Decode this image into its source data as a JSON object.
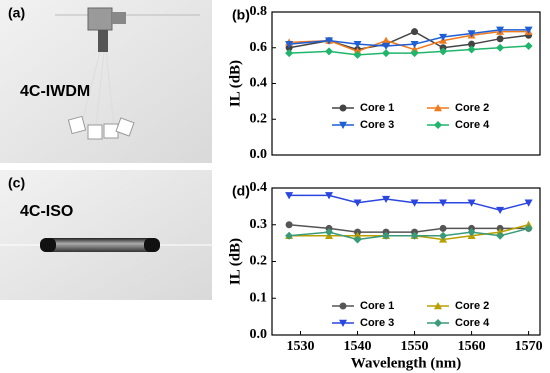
{
  "photos": [
    {
      "label": "(a)",
      "text": "4C-IWDM"
    },
    {
      "label": "(c)",
      "text": "4C-ISO"
    }
  ],
  "chart_data": [
    {
      "type": "line",
      "panel_label": "(b)",
      "y_label": "IL (dB)",
      "x": [
        1528,
        1535,
        1540,
        1545,
        1550,
        1555,
        1560,
        1565,
        1570
      ],
      "xlim": [
        1525,
        1572
      ],
      "ylim": [
        0,
        0.8
      ],
      "yticks": [
        {
          "value": 0,
          "label": "0.0"
        },
        0.2,
        0.4,
        0.6,
        0.8
      ],
      "series": [
        {
          "name": "Core 1",
          "color": "#444444",
          "marker": "circle",
          "values": [
            0.6,
            0.64,
            0.59,
            0.62,
            0.69,
            0.6,
            0.62,
            0.65,
            0.67
          ]
        },
        {
          "name": "Core 2",
          "color": "#f07a1e",
          "marker": "triangle-up",
          "values": [
            0.63,
            0.64,
            0.58,
            0.64,
            0.59,
            0.64,
            0.67,
            0.69,
            0.69
          ]
        },
        {
          "name": "Core 3",
          "color": "#1f5fd6",
          "marker": "triangle-down",
          "values": [
            0.62,
            0.64,
            0.62,
            0.61,
            0.62,
            0.66,
            0.68,
            0.7,
            0.7
          ]
        },
        {
          "name": "Core 4",
          "color": "#1fb56b",
          "marker": "diamond",
          "values": [
            0.57,
            0.58,
            0.56,
            0.57,
            0.57,
            0.58,
            0.59,
            0.6,
            0.61
          ]
        }
      ]
    },
    {
      "type": "line",
      "panel_label": "(d)",
      "y_label": "IL (dB)",
      "x_label": "Wavelength (nm)",
      "x": [
        1528,
        1535,
        1540,
        1545,
        1550,
        1555,
        1560,
        1565,
        1570
      ],
      "xlim": [
        1525,
        1572
      ],
      "xticks": [
        1530,
        1540,
        1550,
        1560,
        1570
      ],
      "ylim": [
        0,
        0.4
      ],
      "yticks": [
        {
          "value": 0,
          "label": "0.0"
        },
        0.1,
        0.2,
        0.3,
        0.4
      ],
      "series": [
        {
          "name": "Core 1",
          "color": "#555555",
          "marker": "circle",
          "values": [
            0.3,
            0.29,
            0.28,
            0.28,
            0.28,
            0.29,
            0.29,
            0.29,
            0.29
          ]
        },
        {
          "name": "Core 2",
          "color": "#b8a000",
          "marker": "triangle-up",
          "values": [
            0.27,
            0.27,
            0.27,
            0.27,
            0.27,
            0.26,
            0.27,
            0.28,
            0.3
          ]
        },
        {
          "name": "Core 3",
          "color": "#2a45e0",
          "marker": "triangle-down",
          "values": [
            0.38,
            0.38,
            0.36,
            0.37,
            0.36,
            0.36,
            0.36,
            0.34,
            0.36
          ]
        },
        {
          "name": "Core 4",
          "color": "#3a9a7a",
          "marker": "diamond",
          "values": [
            0.27,
            0.28,
            0.26,
            0.27,
            0.27,
            0.27,
            0.28,
            0.27,
            0.29
          ]
        }
      ]
    }
  ]
}
